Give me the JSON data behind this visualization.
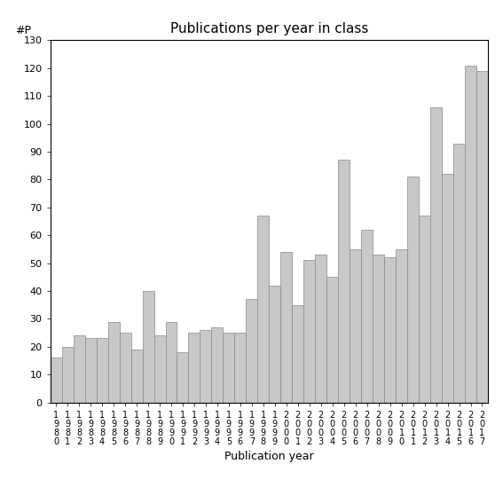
{
  "title": "Publications per year in class",
  "xlabel": "Publication year",
  "ylabel": "#P",
  "ylim": [
    0,
    130
  ],
  "yticks": [
    0,
    10,
    20,
    30,
    40,
    50,
    60,
    70,
    80,
    90,
    100,
    110,
    120,
    130
  ],
  "years": [
    1980,
    1981,
    1982,
    1983,
    1984,
    1985,
    1986,
    1987,
    1988,
    1989,
    1990,
    1991,
    1992,
    1993,
    1994,
    1995,
    1996,
    1997,
    1998,
    1999,
    2000,
    2001,
    2002,
    2003,
    2004,
    2005,
    2006,
    2007,
    2008,
    2009,
    2010,
    2011,
    2012,
    2013,
    2014,
    2015,
    2016,
    2017
  ],
  "values": [
    16,
    20,
    24,
    23,
    23,
    29,
    25,
    19,
    40,
    24,
    29,
    18,
    25,
    26,
    27,
    25,
    25,
    37,
    67,
    42,
    54,
    35,
    51,
    53,
    45,
    87,
    55,
    62,
    53,
    52,
    55,
    81,
    67,
    106,
    82,
    93,
    121,
    119
  ],
  "bar_color": "#c8c8c8",
  "bar_edgecolor": "#888888",
  "background_color": "#ffffff",
  "title_fontsize": 11,
  "axis_fontsize": 9,
  "tick_fontsize": 8,
  "xtick_fontsize": 7
}
